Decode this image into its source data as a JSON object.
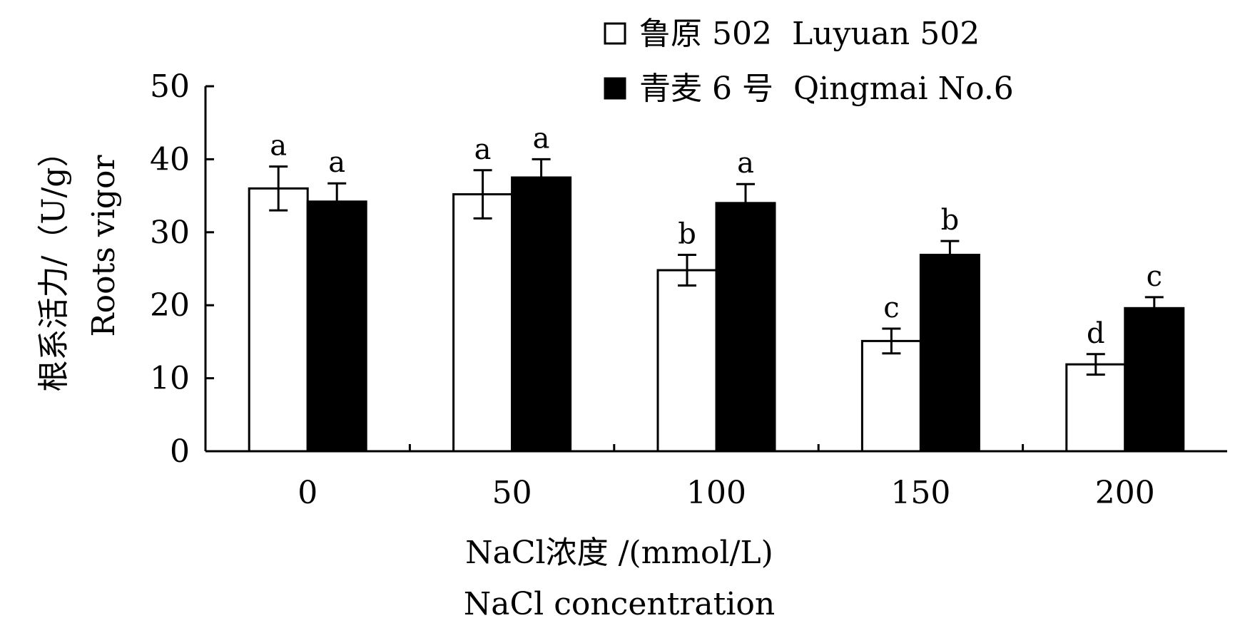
{
  "chart_data": {
    "type": "bar",
    "title": "",
    "xlabel": "NaCl浓度 /(mmol/L)",
    "xlabel_en": "NaCl concentration",
    "ylabel": "根系活力/（U/g）",
    "ylabel_en": "Roots vigor",
    "ylim": [
      0,
      50
    ],
    "yticks": [
      0,
      10,
      20,
      30,
      40,
      50
    ],
    "categories": [
      "0",
      "50",
      "100",
      "150",
      "200"
    ],
    "legend_position": "top-right",
    "series": [
      {
        "name": "鲁原 502  Luyuan 502",
        "fill": "#ffffff",
        "values": [
          36.0,
          35.2,
          24.8,
          15.1,
          11.9
        ],
        "errors": [
          3.0,
          3.3,
          2.1,
          1.7,
          1.4
        ],
        "significance": [
          "a",
          "a",
          "b",
          "c",
          "d"
        ]
      },
      {
        "name": "青麦 6 号  Qingmai No.6",
        "fill": "#000000",
        "values": [
          34.2,
          37.5,
          34.0,
          26.9,
          19.6
        ],
        "errors": [
          2.5,
          2.5,
          2.6,
          1.9,
          1.5
        ],
        "significance": [
          "a",
          "a",
          "a",
          "b",
          "c"
        ]
      }
    ]
  }
}
